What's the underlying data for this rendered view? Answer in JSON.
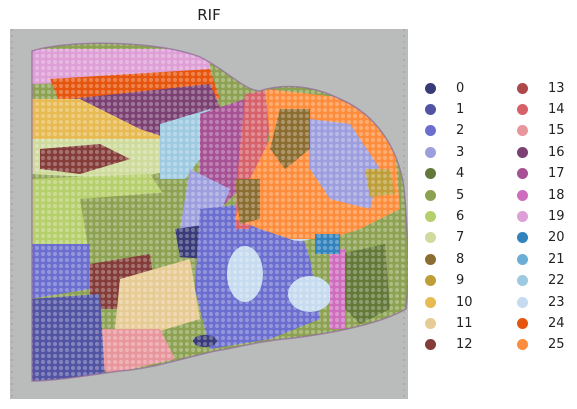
{
  "title": "RIF",
  "legend": [
    {
      "label": "0",
      "color": "#393b79"
    },
    {
      "label": "1",
      "color": "#5254a3"
    },
    {
      "label": "2",
      "color": "#6b6ecf"
    },
    {
      "label": "3",
      "color": "#9c9ede"
    },
    {
      "label": "4",
      "color": "#637939"
    },
    {
      "label": "5",
      "color": "#8ca252"
    },
    {
      "label": "6",
      "color": "#b5cf6b"
    },
    {
      "label": "7",
      "color": "#cedb9c"
    },
    {
      "label": "8",
      "color": "#8c6d31"
    },
    {
      "label": "9",
      "color": "#bd9e39"
    },
    {
      "label": "10",
      "color": "#e7ba52"
    },
    {
      "label": "11",
      "color": "#e7cb94"
    },
    {
      "label": "12",
      "color": "#843c39"
    },
    {
      "label": "13",
      "color": "#ad494a"
    },
    {
      "label": "14",
      "color": "#d6616b"
    },
    {
      "label": "15",
      "color": "#e7969c"
    },
    {
      "label": "16",
      "color": "#7b4173"
    },
    {
      "label": "17",
      "color": "#a55194"
    },
    {
      "label": "18",
      "color": "#ce6dbd"
    },
    {
      "label": "19",
      "color": "#de9ed6"
    },
    {
      "label": "20",
      "color": "#3182bd"
    },
    {
      "label": "21",
      "color": "#6baed6"
    },
    {
      "label": "22",
      "color": "#9ecae1"
    },
    {
      "label": "23",
      "color": "#c6dbef"
    },
    {
      "label": "24",
      "color": "#e6550d"
    },
    {
      "label": "25",
      "color": "#fd8d3c"
    }
  ],
  "background_color": "#b9bcba"
}
